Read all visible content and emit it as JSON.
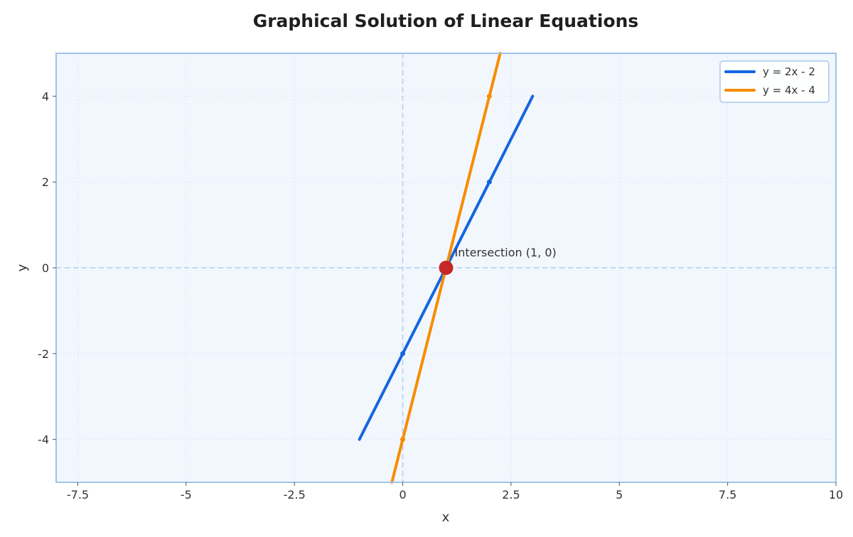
{
  "chart_data": {
    "type": "line",
    "title": "Graphical Solution of Linear Equations",
    "xlabel": "x",
    "ylabel": "y",
    "xlim": [
      -8,
      10
    ],
    "ylim": [
      -5,
      5
    ],
    "xticks": [
      -7.5,
      -5,
      -2.5,
      0,
      2.5,
      5,
      7.5,
      10
    ],
    "xtick_labels": [
      "-7.5",
      "-5",
      "-2.5",
      "0",
      "2.5",
      "5",
      "7.5",
      "10"
    ],
    "yticks": [
      -4,
      -2,
      0,
      2,
      4
    ],
    "ytick_labels": [
      "-4",
      "-2",
      "0",
      "2",
      "4"
    ],
    "grid": true,
    "legend_position": "top-right",
    "series": [
      {
        "name": "y = 2x - 2",
        "color": "#1565e0",
        "x": [
          -1,
          0,
          1,
          2,
          3
        ],
        "y": [
          -4,
          -2,
          0,
          2,
          4
        ],
        "markers_x": [
          0,
          2
        ],
        "markers_y": [
          -2,
          2
        ]
      },
      {
        "name": "y = 4x - 4",
        "color": "#f88c00",
        "x": [
          -0.25,
          0,
          1,
          2,
          2.25
        ],
        "y": [
          -5,
          -4,
          0,
          4,
          5
        ],
        "markers_x": [
          0,
          2
        ],
        "markers_y": [
          -4,
          4
        ]
      }
    ],
    "intersection": {
      "x": 1,
      "y": 0,
      "label": "Intersection (1, 0)",
      "color": "#c62828"
    }
  }
}
